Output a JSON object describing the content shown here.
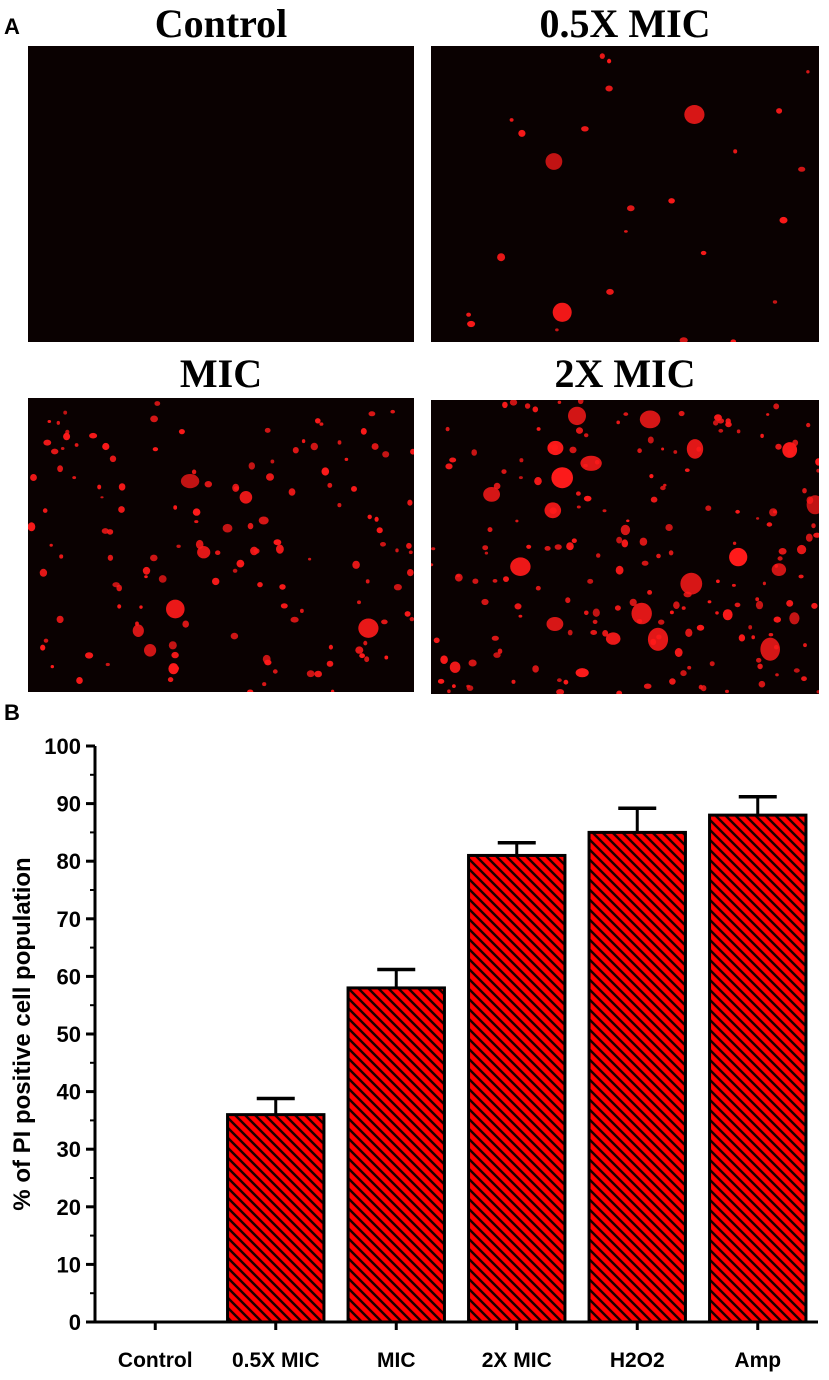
{
  "panels": {
    "a_label": "A",
    "b_label": "B"
  },
  "images": [
    {
      "title": "Control",
      "cells": 0
    },
    {
      "title": "0.5X MIC",
      "cells": 26
    },
    {
      "title": "MIC",
      "cells": 140
    },
    {
      "title": "2X MIC",
      "cells": 200
    }
  ],
  "colors": {
    "cell": "#ff1a1a",
    "background": "#0a0101",
    "bar": "#ff0000",
    "hatch": "#1a0000"
  },
  "chart_data": {
    "type": "bar",
    "title": "",
    "xlabel": "",
    "ylabel": "% of PI positive cell population",
    "categories": [
      "Control",
      "0.5X MIC",
      "MIC",
      "2X MIC",
      "H2O2",
      "Amp"
    ],
    "values": [
      0,
      36,
      58,
      81,
      85,
      88
    ],
    "errors": [
      0,
      2.8,
      3.2,
      2.2,
      4.2,
      3.2
    ],
    "ylim": [
      0,
      100
    ],
    "yticks": [
      0,
      10,
      20,
      30,
      40,
      50,
      60,
      70,
      80,
      90,
      100
    ],
    "grid": false,
    "legend": "none"
  }
}
